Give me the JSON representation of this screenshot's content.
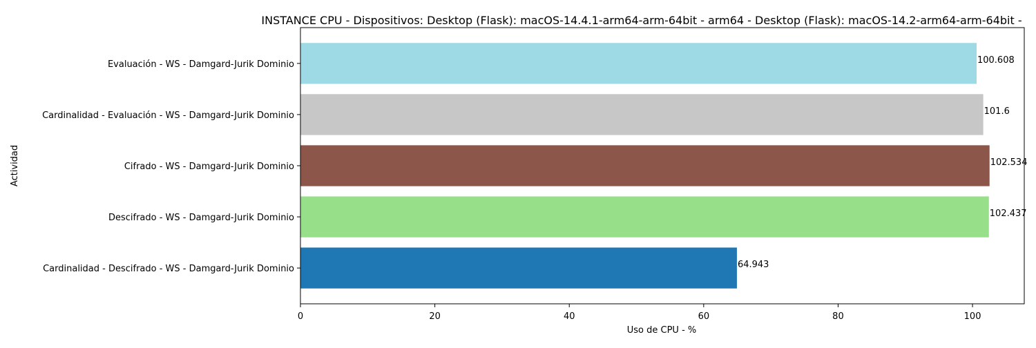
{
  "chart_data": {
    "type": "bar",
    "orientation": "horizontal",
    "title": "INSTANCE CPU - Dispositivos: Desktop (Flask): macOS-14.4.1-arm64-arm-64bit - arm64 - Desktop (Flask): macOS-14.2-arm64-arm-64bit -",
    "xlabel": "Uso de CPU - %",
    "ylabel": "Actividad",
    "xlim": [
      0,
      107.7
    ],
    "xticks": [
      0,
      20,
      40,
      60,
      80,
      100
    ],
    "grid": false,
    "categories": [
      "Evaluación - WS - Damgard-Jurik Dominio",
      "Cardinalidad - Evaluación - WS - Damgard-Jurik Dominio",
      "Cifrado - WS - Damgard-Jurik Dominio",
      "Descifrado - WS - Damgard-Jurik Dominio",
      "Cardinalidad - Descifrado - WS - Damgard-Jurik Dominio"
    ],
    "values": [
      100.608,
      101.6,
      102.534,
      102.437,
      64.943
    ],
    "value_labels": [
      "100.608",
      "101.6",
      "102.534",
      "102.437",
      "64.943"
    ],
    "colors": [
      "#9edae5",
      "#c7c7c7",
      "#8c564b",
      "#98df8a",
      "#1f77b4"
    ]
  }
}
